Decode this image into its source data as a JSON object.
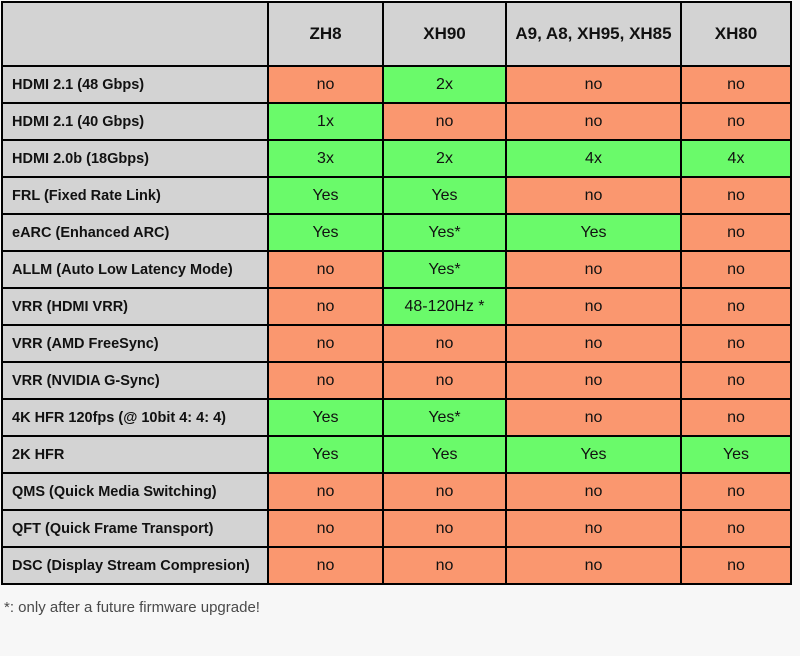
{
  "colors": {
    "supported_bg": "#6afa6a",
    "unsupported_bg": "#fa976f",
    "header_bg": "#d3d3d3",
    "border": "#000000",
    "page_bg": "#f7f7f7"
  },
  "table": {
    "columns": [
      "",
      "ZH8",
      "XH90",
      "A9, A8, XH95, XH85",
      "XH80"
    ],
    "rows": [
      {
        "label": "HDMI 2.1 (48 Gbps)",
        "cells": [
          {
            "text": "no",
            "supported": false
          },
          {
            "text": "2x",
            "supported": true
          },
          {
            "text": "no",
            "supported": false
          },
          {
            "text": "no",
            "supported": false
          }
        ]
      },
      {
        "label": "HDMI 2.1 (40 Gbps)",
        "cells": [
          {
            "text": "1x",
            "supported": true
          },
          {
            "text": "no",
            "supported": false
          },
          {
            "text": "no",
            "supported": false
          },
          {
            "text": "no",
            "supported": false
          }
        ]
      },
      {
        "label": "HDMI 2.0b (18Gbps)",
        "cells": [
          {
            "text": "3x",
            "supported": true
          },
          {
            "text": "2x",
            "supported": true
          },
          {
            "text": "4x",
            "supported": true
          },
          {
            "text": "4x",
            "supported": true
          }
        ]
      },
      {
        "label": "FRL (Fixed Rate Link)",
        "cells": [
          {
            "text": "Yes",
            "supported": true
          },
          {
            "text": "Yes",
            "supported": true
          },
          {
            "text": "no",
            "supported": false
          },
          {
            "text": "no",
            "supported": false
          }
        ]
      },
      {
        "label": "eARC (Enhanced ARC)",
        "cells": [
          {
            "text": "Yes",
            "supported": true
          },
          {
            "text": "Yes*",
            "supported": true
          },
          {
            "text": "Yes",
            "supported": true
          },
          {
            "text": "no",
            "supported": false
          }
        ]
      },
      {
        "label": "ALLM (Auto Low Latency Mode)",
        "cells": [
          {
            "text": "no",
            "supported": false
          },
          {
            "text": "Yes*",
            "supported": true
          },
          {
            "text": "no",
            "supported": false
          },
          {
            "text": "no",
            "supported": false
          }
        ]
      },
      {
        "label": "VRR (HDMI VRR)",
        "cells": [
          {
            "text": "no",
            "supported": false
          },
          {
            "text": "48-120Hz *",
            "supported": true
          },
          {
            "text": "no",
            "supported": false
          },
          {
            "text": "no",
            "supported": false
          }
        ]
      },
      {
        "label": "VRR (AMD FreeSync)",
        "cells": [
          {
            "text": "no",
            "supported": false
          },
          {
            "text": "no",
            "supported": false
          },
          {
            "text": "no",
            "supported": false
          },
          {
            "text": "no",
            "supported": false
          }
        ]
      },
      {
        "label": "VRR (NVIDIA G-Sync)",
        "cells": [
          {
            "text": "no",
            "supported": false
          },
          {
            "text": "no",
            "supported": false
          },
          {
            "text": "no",
            "supported": false
          },
          {
            "text": "no",
            "supported": false
          }
        ]
      },
      {
        "label": "4K HFR 120fps (@ 10bit 4: 4: 4)",
        "cells": [
          {
            "text": "Yes",
            "supported": true
          },
          {
            "text": "Yes*",
            "supported": true
          },
          {
            "text": "no",
            "supported": false
          },
          {
            "text": "no",
            "supported": false
          }
        ]
      },
      {
        "label": "2K HFR",
        "cells": [
          {
            "text": "Yes",
            "supported": true
          },
          {
            "text": "Yes",
            "supported": true
          },
          {
            "text": "Yes",
            "supported": true
          },
          {
            "text": "Yes",
            "supported": true
          }
        ]
      },
      {
        "label": "QMS (Quick Media Switching)",
        "cells": [
          {
            "text": "no",
            "supported": false
          },
          {
            "text": "no",
            "supported": false
          },
          {
            "text": "no",
            "supported": false
          },
          {
            "text": "no",
            "supported": false
          }
        ]
      },
      {
        "label": "QFT (Quick Frame Transport)",
        "cells": [
          {
            "text": "no",
            "supported": false
          },
          {
            "text": "no",
            "supported": false
          },
          {
            "text": "no",
            "supported": false
          },
          {
            "text": "no",
            "supported": false
          }
        ]
      },
      {
        "label": "DSC (Display Stream Compresion)",
        "cells": [
          {
            "text": "no",
            "supported": false
          },
          {
            "text": "no",
            "supported": false
          },
          {
            "text": "no",
            "supported": false
          },
          {
            "text": "no",
            "supported": false
          }
        ]
      }
    ]
  },
  "footnote": "*: only after a future firmware upgrade!"
}
